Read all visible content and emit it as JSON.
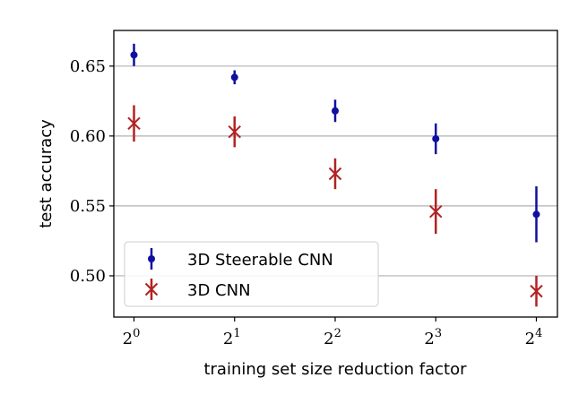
{
  "chart_data": {
    "type": "scatter",
    "title": "",
    "xlabel": "training set size reduction factor",
    "ylabel": "test accuracy",
    "x_categories": [
      {
        "base": "2",
        "exp": "0"
      },
      {
        "base": "2",
        "exp": "1"
      },
      {
        "base": "2",
        "exp": "2"
      },
      {
        "base": "2",
        "exp": "3"
      },
      {
        "base": "2",
        "exp": "4"
      }
    ],
    "x": [
      1,
      2,
      4,
      8,
      16
    ],
    "ylim": [
      0.4705,
      0.6755
    ],
    "yticks": [
      0.5,
      0.55,
      0.6,
      0.65
    ],
    "ytick_labels": [
      "0.50",
      "0.55",
      "0.60",
      "0.65"
    ],
    "grid": {
      "y": true,
      "x": false
    },
    "legend_position": "lower-left",
    "series": [
      {
        "name": "3D Steerable CNN",
        "marker": "dot",
        "color": "#1010a0",
        "values": [
          0.658,
          0.642,
          0.618,
          0.598,
          0.544
        ],
        "error": [
          0.008,
          0.005,
          0.008,
          0.011,
          0.02
        ]
      },
      {
        "name": "3D CNN",
        "marker": "x",
        "color": "#b22222",
        "values": [
          0.609,
          0.603,
          0.573,
          0.546,
          0.489
        ],
        "error": [
          0.013,
          0.011,
          0.011,
          0.016,
          0.011
        ]
      }
    ]
  }
}
